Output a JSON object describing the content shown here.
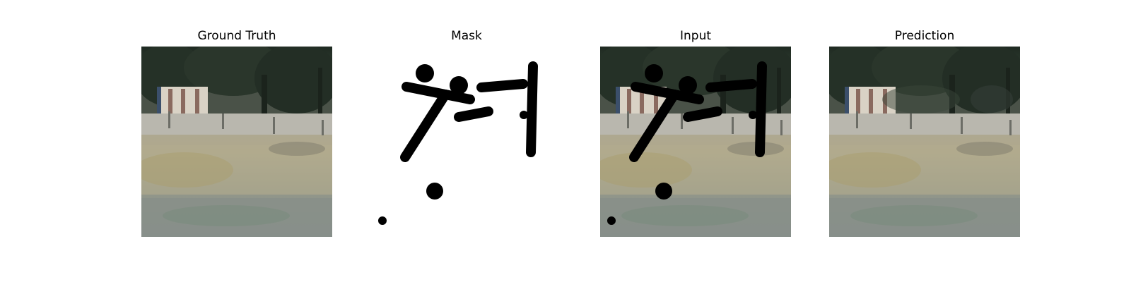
{
  "panels": [
    {
      "title": "Ground Truth"
    },
    {
      "title": "Mask"
    },
    {
      "title": "Input"
    },
    {
      "title": "Prediction"
    }
  ],
  "colors": {
    "background": "#ffffff",
    "mask_stroke": "#000000",
    "trees": "#2b3a2b",
    "grass": "#a8a79d",
    "building": "#d9d2c5"
  }
}
